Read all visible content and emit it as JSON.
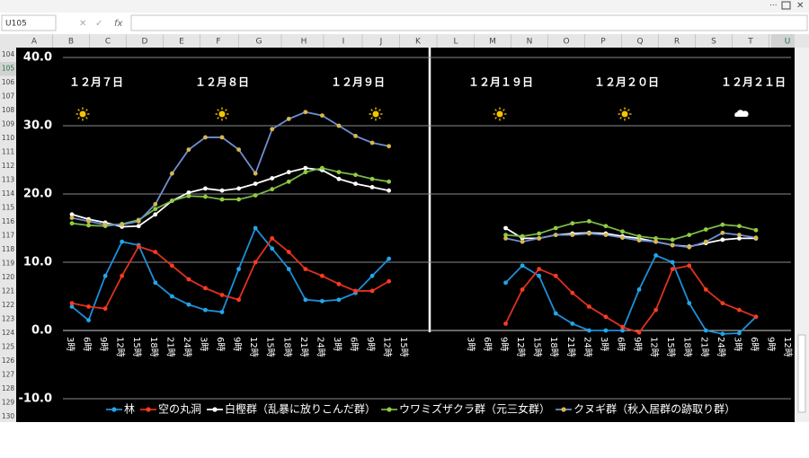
{
  "spreadsheet": {
    "name_box": "U105",
    "columns": [
      "A",
      "B",
      "C",
      "D",
      "E",
      "F",
      "G",
      "H",
      "I",
      "J",
      "K",
      "L",
      "M",
      "N",
      "O",
      "P",
      "Q",
      "R",
      "S",
      "T",
      "U"
    ],
    "rows": [
      "104",
      "105",
      "106",
      "107",
      "108",
      "109",
      "110",
      "111",
      "112",
      "113",
      "114",
      "115",
      "116",
      "117",
      "118",
      "119",
      "120",
      "121",
      "122",
      "123",
      "124",
      "125",
      "126",
      "127",
      "128",
      "129",
      "130"
    ]
  },
  "chart_data": {
    "type": "line",
    "annotations": [
      "１２月７日",
      "１２月８日",
      "１２月９日",
      "１２月１９日",
      "１２月２０日",
      "１２月２１日"
    ],
    "categories": [
      "3時",
      "6時",
      "9時",
      "12時",
      "15時",
      "18時",
      "21時",
      "24時",
      "3時",
      "6時",
      "9時",
      "12時",
      "15時",
      "18時",
      "21時",
      "24時",
      "3時",
      "6時",
      "9時",
      "12時",
      "15時",
      null,
      null,
      null,
      "3時",
      "6時",
      "9時",
      "12時",
      "15時",
      "18時",
      "21時",
      "24時",
      "3時",
      "6時",
      "9時",
      "12時",
      "15時",
      "18時",
      "21時",
      "24時",
      "3時",
      "6時",
      "9時",
      "12時"
    ],
    "ylim": [
      -10,
      40
    ],
    "yticks": [
      {
        "value": -10,
        "label": "-10.0"
      },
      {
        "value": 0,
        "label": "0.0"
      },
      {
        "value": 10,
        "label": "10.0"
      },
      {
        "value": 20,
        "label": "20.0"
      },
      {
        "value": 30,
        "label": "30.0"
      },
      {
        "value": 40,
        "label": "40.0"
      }
    ],
    "grid": true,
    "legend": "bottom",
    "series": [
      {
        "name": "林",
        "color": "#1e8fd6",
        "marker_color": "#22a7e8",
        "values": [
          3.5,
          1.5,
          8,
          13,
          12.5,
          7,
          5,
          3.8,
          3,
          2.7,
          9,
          15,
          12,
          9,
          4.5,
          4.3,
          4.5,
          5.5,
          8,
          10.5,
          null,
          null,
          null,
          null,
          null,
          null,
          7,
          9.5,
          8,
          2.5,
          1,
          0,
          0,
          0,
          6,
          11,
          10,
          4,
          0,
          -0.5,
          -0.4,
          2,
          null,
          null
        ]
      },
      {
        "name": "空の丸洞",
        "color": "#e0301e",
        "marker_color": "#ff3a1e",
        "values": [
          4,
          3.5,
          3.2,
          8,
          12.3,
          11.5,
          9.5,
          7.5,
          6.2,
          5.2,
          4.5,
          10,
          13.5,
          11.5,
          9,
          8,
          6.8,
          5.8,
          5.8,
          7.2,
          null,
          null,
          null,
          null,
          null,
          null,
          1,
          6,
          9,
          8,
          5.5,
          3.5,
          2,
          0.5,
          -0.3,
          3,
          9,
          9.5,
          6,
          4,
          3,
          2,
          null,
          null
        ]
      },
      {
        "name": "白樫群（乱暴に放りこんだ群）",
        "color": "#ffffff",
        "marker_color": "#ffffff",
        "values": [
          17,
          16.3,
          15.8,
          15.2,
          15.3,
          17,
          19,
          20.2,
          20.8,
          20.5,
          20.8,
          21.5,
          22.3,
          23.2,
          23.8,
          23.5,
          22.2,
          21.5,
          21,
          20.5,
          null,
          null,
          null,
          null,
          null,
          null,
          15,
          13.5,
          13.5,
          14,
          14.2,
          14.3,
          14.2,
          13.8,
          13.5,
          13,
          12.5,
          12.3,
          12.8,
          13.3,
          13.5,
          13.5,
          null,
          null
        ]
      },
      {
        "name": "ウワミズザクラ群（元三女群）",
        "color": "#7ab648",
        "marker_color": "#92cc44",
        "values": [
          15.7,
          15.4,
          15.3,
          15.6,
          16.2,
          17.8,
          19,
          19.7,
          19.6,
          19.2,
          19.2,
          19.8,
          20.7,
          21.8,
          23.2,
          23.8,
          23.2,
          22.8,
          22.2,
          21.8,
          null,
          null,
          null,
          null,
          null,
          null,
          14,
          13.8,
          14.2,
          15,
          15.7,
          16,
          15.3,
          14.5,
          13.8,
          13.5,
          13.3,
          14,
          14.8,
          15.5,
          15.3,
          14.7,
          null,
          null
        ]
      },
      {
        "name": "クヌギ群（秋入居群の跡取り群）",
        "color": "#6f8fd0",
        "marker_color": "#d6b84a",
        "values": [
          16.5,
          16,
          15.5,
          15.5,
          16,
          18.5,
          23,
          26.5,
          28.3,
          28.3,
          26.5,
          23,
          29.5,
          31,
          32,
          31.5,
          30,
          28.5,
          27.5,
          27,
          null,
          null,
          null,
          null,
          null,
          null,
          13.5,
          13,
          13.5,
          14,
          14,
          14.2,
          14,
          13.6,
          13.2,
          13,
          12.5,
          12.2,
          13,
          14.3,
          14,
          13.6,
          null,
          null
        ]
      }
    ]
  }
}
